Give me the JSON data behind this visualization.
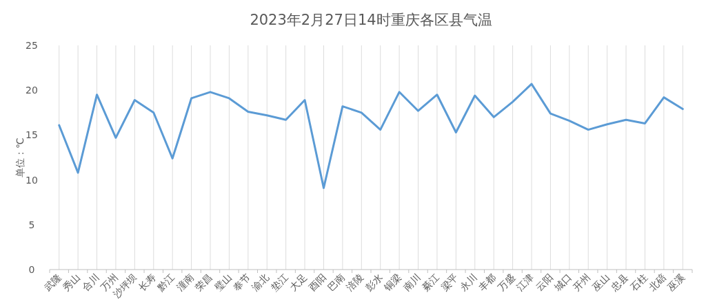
{
  "chart_data": {
    "type": "line",
    "title": "2023年2月27日14时重庆各区县气温",
    "ylabel": "单位：℃",
    "categories": [
      "武隆",
      "秀山",
      "合川",
      "万州",
      "沙坪坝",
      "长寿",
      "黔江",
      "潼南",
      "荣昌",
      "璧山",
      "奉节",
      "渝北",
      "垫江",
      "大足",
      "酉阳",
      "巴南",
      "涪陵",
      "彭水",
      "铜梁",
      "南川",
      "綦江",
      "梁平",
      "永川",
      "丰都",
      "万盛",
      "江津",
      "云阳",
      "城口",
      "开州",
      "巫山",
      "忠县",
      "石柱",
      "北碚",
      "巫溪"
    ],
    "series": [
      {
        "color": "#5b9bd5",
        "values": [
          16.1,
          10.8,
          19.5,
          14.7,
          18.9,
          17.5,
          12.4,
          19.1,
          19.8,
          19.1,
          17.6,
          17.2,
          16.7,
          18.9,
          9.1,
          18.2,
          17.5,
          15.6,
          19.8,
          17.7,
          19.5,
          15.3,
          19.4,
          17.0,
          18.7,
          20.7,
          17.4,
          16.6,
          15.6,
          16.2,
          16.7,
          16.3,
          19.2,
          17.9
        ]
      }
    ],
    "ylim": [
      0,
      25
    ],
    "yticks": [
      0,
      5,
      10,
      15,
      20,
      25
    ],
    "grid": "x",
    "marker": "none",
    "line_style": "solid"
  }
}
